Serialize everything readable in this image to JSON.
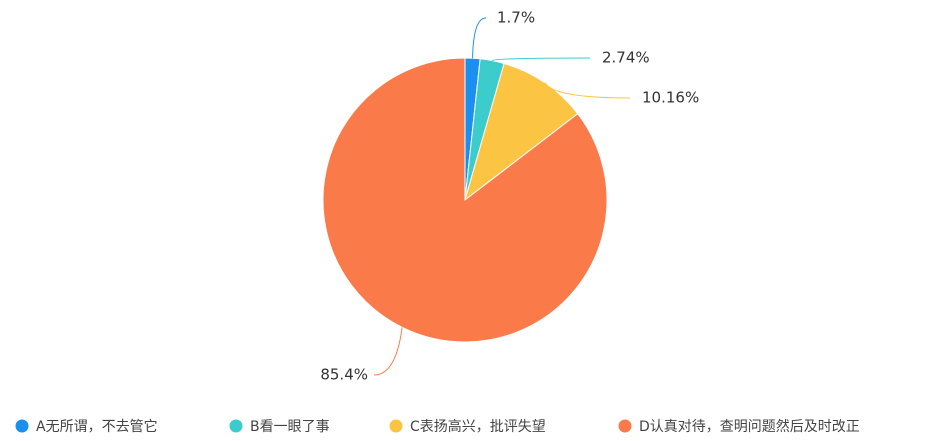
{
  "chart_data": {
    "type": "pie",
    "categories": [
      "A无所谓，不去管它",
      "B看一眼了事",
      "C表扬高兴，批评失望",
      "D认真对待，查明问题然后及时改正"
    ],
    "values": [
      1.7,
      2.74,
      10.16,
      85.4
    ],
    "value_labels": [
      "1.7%",
      "2.74%",
      "10.16%",
      "85.4%"
    ],
    "colors": [
      "#1a8ff0",
      "#3ccccb",
      "#fbc443",
      "#fa7b49"
    ],
    "legend": "bottom"
  }
}
